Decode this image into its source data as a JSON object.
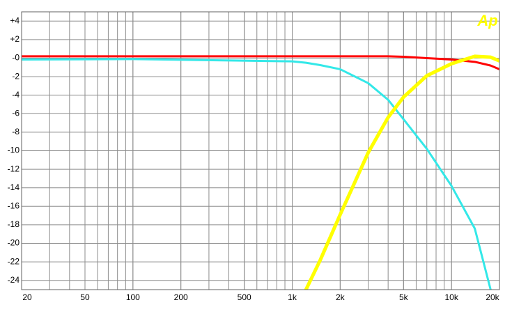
{
  "chart_data": {
    "type": "line",
    "logo": "Ap",
    "log_x": true,
    "grid": true,
    "x": [
      20,
      100,
      1000,
      1220,
      1500,
      2000,
      3000,
      4000,
      5000,
      7000,
      10000,
      14000,
      17600,
      20000
    ],
    "series": [
      {
        "color": "#ff0000",
        "width": 3,
        "values": [
          0.2,
          0.2,
          0.2,
          0.2,
          0.2,
          0.2,
          0.2,
          0.2,
          0.15,
          0,
          -0.15,
          -0.4,
          -0.8,
          -1.2
        ]
      },
      {
        "color": "#33e8e8",
        "width": 3,
        "values": [
          -0.15,
          -0.1,
          -0.35,
          -0.5,
          -0.75,
          -1.2,
          -2.7,
          -4.5,
          -6.6,
          -9.8,
          -13.8,
          -18.4,
          -25,
          null
        ]
      },
      {
        "color": "#ffff00",
        "width": 5,
        "values": [
          null,
          null,
          null,
          -25,
          -21.8,
          -16.9,
          -10.2,
          -6.4,
          -4.2,
          -1.9,
          -0.6,
          0.2,
          0.1,
          -0.3
        ]
      }
    ],
    "xlim": [
      20,
      20000
    ],
    "ylim": [
      -25,
      5
    ],
    "xticks": [
      20,
      50,
      100,
      200,
      500,
      {
        "value": 1000,
        "label": "1k"
      },
      {
        "value": 2000,
        "label": "2k"
      },
      {
        "value": 5000,
        "label": "5k"
      },
      {
        "value": 10000,
        "label": "10k"
      },
      {
        "value": 20000,
        "label": "20k"
      }
    ],
    "yticks": [
      {
        "value": 4,
        "label": "+4"
      },
      {
        "value": 2,
        "label": "+2"
      },
      {
        "value": 0,
        "label": "-0"
      },
      -2,
      -4,
      -6,
      -8,
      -10,
      -12,
      -14,
      -16,
      -18,
      -20,
      -22,
      -24
    ]
  }
}
